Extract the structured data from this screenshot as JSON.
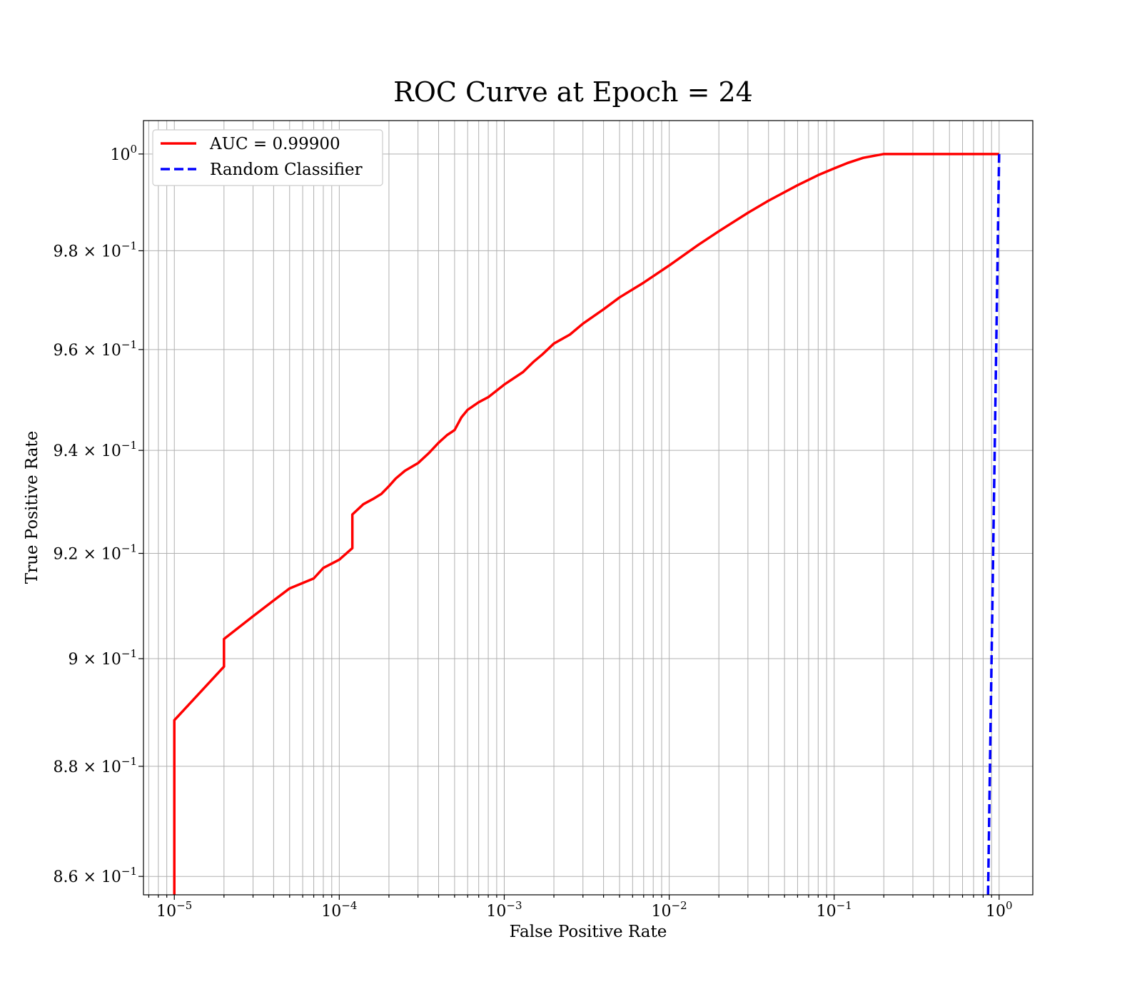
{
  "chart_data": {
    "type": "line",
    "title": "ROC Curve at Epoch = 24",
    "xlabel": "False Positive Rate",
    "ylabel": "True Positive Rate",
    "xscale": "log",
    "yscale": "log",
    "xlim": [
      6.5e-06,
      1.6
    ],
    "ylim": [
      0.8567,
      1.007
    ],
    "grid": "major and minor",
    "legend_placement": "upper-left",
    "x_ticks": [
      {
        "value": 1e-05,
        "base": "10",
        "exp": "−5"
      },
      {
        "value": 0.0001,
        "base": "10",
        "exp": "−4"
      },
      {
        "value": 0.001,
        "base": "10",
        "exp": "−3"
      },
      {
        "value": 0.01,
        "base": "10",
        "exp": "−2"
      },
      {
        "value": 0.1,
        "base": "10",
        "exp": "−1"
      },
      {
        "value": 1,
        "base": "10",
        "exp": "0"
      }
    ],
    "y_ticks": [
      {
        "value": 1.0,
        "base": "10",
        "exp": "0"
      },
      {
        "value": 0.98,
        "base": "9.8 × 10",
        "exp": "−1"
      },
      {
        "value": 0.96,
        "base": "9.6 × 10",
        "exp": "−1"
      },
      {
        "value": 0.94,
        "base": "9.4 × 10",
        "exp": "−1"
      },
      {
        "value": 0.92,
        "base": "9.2 × 10",
        "exp": "−1"
      },
      {
        "value": 0.9,
        "base": "9 × 10",
        "exp": "−1"
      },
      {
        "value": 0.88,
        "base": "8.8 × 10",
        "exp": "−1"
      },
      {
        "value": 0.86,
        "base": "8.6 × 10",
        "exp": "−1"
      }
    ],
    "series": [
      {
        "name": "AUC = 0.99900",
        "color": "#ff0000",
        "style": "solid",
        "x": [
          1e-05,
          1e-05,
          2e-05,
          2e-05,
          3e-05,
          4e-05,
          5e-05,
          7e-05,
          8e-05,
          0.0001,
          0.00012,
          0.00012,
          0.00014,
          0.00016,
          0.00018,
          0.0002,
          0.00022,
          0.00025,
          0.0003,
          0.00035,
          0.0004,
          0.00045,
          0.0005,
          0.00055,
          0.0006,
          0.0007,
          0.0008,
          0.001,
          0.0013,
          0.0015,
          0.0017,
          0.002,
          0.0025,
          0.003,
          0.004,
          0.005,
          0.007,
          0.01,
          0.015,
          0.02,
          0.03,
          0.04,
          0.06,
          0.08,
          0.1,
          0.12,
          0.15,
          0.2,
          0.5,
          1.0
        ],
        "y": [
          0.8567,
          0.8885,
          0.8985,
          0.9037,
          0.908,
          0.911,
          0.9133,
          0.9152,
          0.9172,
          0.9188,
          0.921,
          0.9275,
          0.9295,
          0.9305,
          0.9315,
          0.933,
          0.9345,
          0.936,
          0.9375,
          0.9395,
          0.9415,
          0.943,
          0.944,
          0.9465,
          0.948,
          0.9495,
          0.9505,
          0.953,
          0.9555,
          0.9575,
          0.959,
          0.9612,
          0.963,
          0.9652,
          0.9681,
          0.9705,
          0.9735,
          0.977,
          0.9812,
          0.984,
          0.9878,
          0.9903,
          0.9935,
          0.9956,
          0.997,
          0.9981,
          0.9992,
          1.0,
          1.0,
          1.0
        ]
      },
      {
        "name": "Random Classifier",
        "color": "#0000ff",
        "style": "dashed",
        "x": [
          0.8567,
          1.0
        ],
        "y": [
          0.8567,
          1.0
        ]
      }
    ]
  }
}
